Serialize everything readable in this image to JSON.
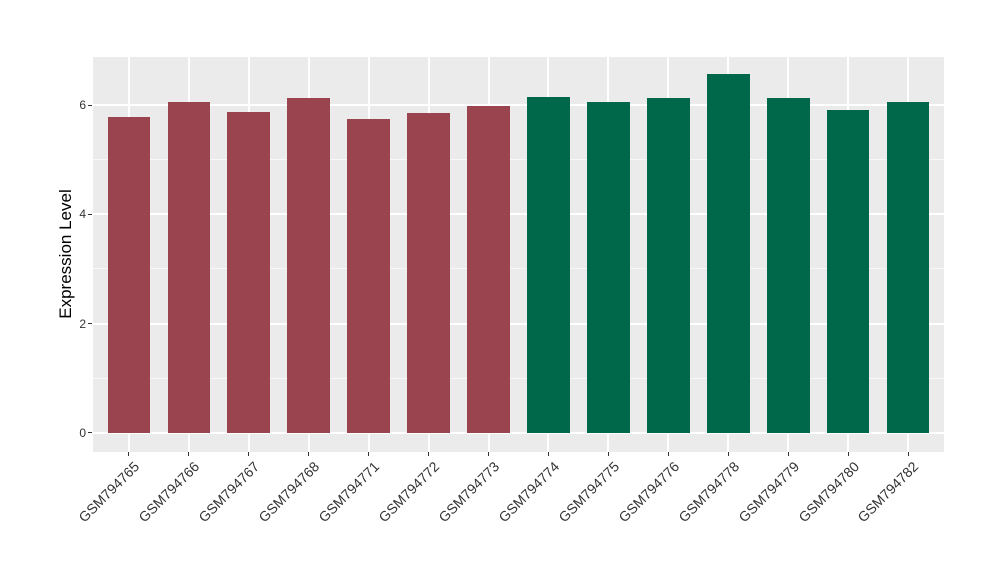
{
  "chart_data": {
    "type": "bar",
    "title": "",
    "xlabel": "",
    "ylabel": "Expression Level",
    "categories": [
      "GSM794765",
      "GSM794766",
      "GSM794767",
      "GSM794768",
      "GSM794771",
      "GSM794772",
      "GSM794773",
      "GSM794774",
      "GSM794775",
      "GSM794776",
      "GSM794778",
      "GSM794779",
      "GSM794780",
      "GSM794782"
    ],
    "values": [
      5.79,
      6.06,
      5.88,
      6.13,
      5.74,
      5.85,
      5.98,
      6.15,
      6.05,
      6.13,
      6.56,
      6.13,
      5.91,
      6.05
    ],
    "bar_colors": [
      "#9A4450",
      "#9A4450",
      "#9A4450",
      "#9A4450",
      "#9A4450",
      "#9A4450",
      "#9A4450",
      "#00684A",
      "#00684A",
      "#00684A",
      "#00684A",
      "#00684A",
      "#00684A",
      "#00684A"
    ],
    "group_colors": {
      "left_group": "#9A4450",
      "right_group": "#00684A"
    },
    "y_ticks": [
      0,
      2,
      4,
      6
    ],
    "y_minor_gridlines": [
      1,
      3,
      5
    ],
    "ylim": [
      0,
      6.88
    ],
    "x_tick_rotation_deg": 45,
    "legend": "none",
    "grid": "on",
    "panel_background": "#EBEBEB",
    "gridline_color": "#FFFFFF",
    "axis_text_color": "#333333",
    "axis_title_color": "#000000"
  }
}
